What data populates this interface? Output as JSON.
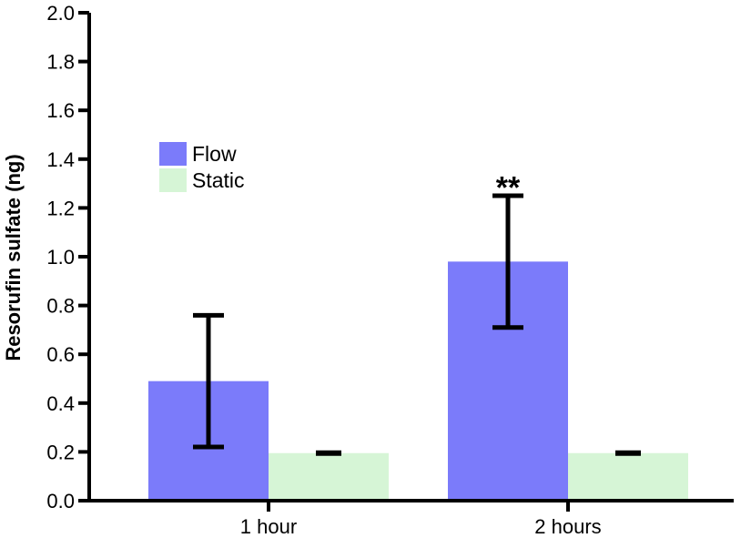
{
  "chart_data": {
    "type": "bar",
    "title": "",
    "xlabel": "",
    "ylabel": "Resorufin sulfate (ng)",
    "ylim": [
      0,
      2.0
    ],
    "yticks": [
      "0.0",
      "0.2",
      "0.4",
      "0.6",
      "0.8",
      "1.0",
      "1.2",
      "1.4",
      "1.6",
      "1.8",
      "2.0"
    ],
    "categories": [
      "1 hour",
      "2 hours"
    ],
    "series": [
      {
        "name": "Flow",
        "color": "#7B7BFA",
        "values": [
          0.49,
          0.98
        ],
        "error": [
          0.27,
          0.27
        ]
      },
      {
        "name": "Static",
        "color": "#D6F5D6",
        "values": [
          0.195,
          0.195
        ],
        "error": [
          0.005,
          0.005
        ]
      }
    ],
    "annotations": [
      {
        "category": "2 hours",
        "series": "Flow",
        "text": "**",
        "y": 1.33
      }
    ],
    "legend": "upper-left",
    "grid": false
  }
}
